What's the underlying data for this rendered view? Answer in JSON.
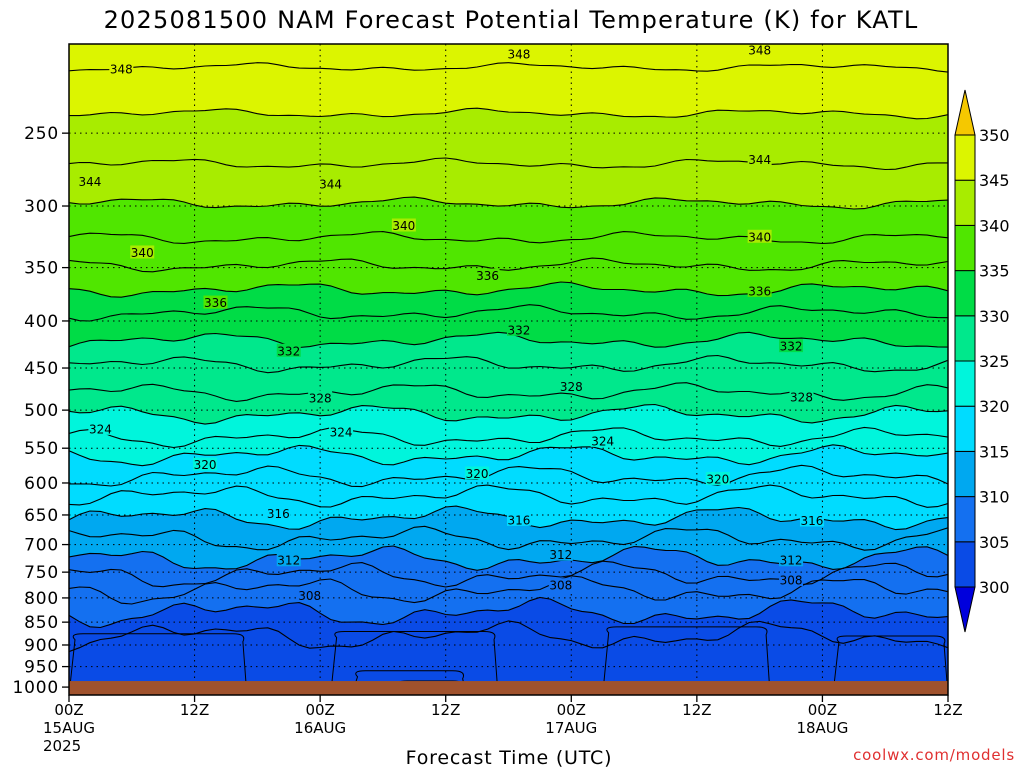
{
  "title": "2025081500 NAM Forecast Potential Temperature (K) for KATL",
  "credit": "coolwx.com/models",
  "xlabel": "Forecast Time (UTC)",
  "chart_data": {
    "type": "contour-timeheight",
    "title": "2025081500 NAM Forecast Potential Temperature (K) for KATL",
    "xlabel": "Forecast Time (UTC)",
    "ylabel": "",
    "x_ticks": [
      {
        "hour": 0,
        "lines": [
          "00Z",
          "15AUG",
          "2025"
        ]
      },
      {
        "hour": 12,
        "lines": [
          "12Z"
        ]
      },
      {
        "hour": 24,
        "lines": [
          "00Z",
          "16AUG"
        ]
      },
      {
        "hour": 36,
        "lines": [
          "12Z"
        ]
      },
      {
        "hour": 48,
        "lines": [
          "00Z",
          "17AUG"
        ]
      },
      {
        "hour": 60,
        "lines": [
          "12Z"
        ]
      },
      {
        "hour": 72,
        "lines": [
          "00Z",
          "18AUG"
        ]
      },
      {
        "hour": 84,
        "lines": [
          "12Z"
        ]
      }
    ],
    "xlim": [
      0,
      84
    ],
    "y_ticks": [
      250,
      300,
      350,
      400,
      450,
      500,
      550,
      600,
      650,
      700,
      750,
      800,
      850,
      900,
      950,
      1000
    ],
    "ylim_hpa": [
      200,
      1020
    ],
    "y_scale": "log",
    "ground_color": "#a0522d",
    "colorbar": {
      "labels": [
        300,
        305,
        310,
        315,
        320,
        325,
        330,
        335,
        340,
        345,
        350
      ],
      "colors": [
        "#0000dc",
        "#0a4be6",
        "#1470f0",
        "#00a8f0",
        "#00dcff",
        "#00f5dc",
        "#00e88c",
        "#00dc46",
        "#50e600",
        "#a8ec00",
        "#dcf500",
        "#fff000",
        "#f5c800"
      ],
      "extend": "both"
    },
    "contour_interval": 2,
    "contour_labels": [
      {
        "value": 348,
        "hour": 5,
        "hpa": 213
      },
      {
        "value": 348,
        "hour": 43,
        "hpa": 205
      },
      {
        "value": 348,
        "hour": 66,
        "hpa": 203
      },
      {
        "value": 344,
        "hour": 2,
        "hpa": 282
      },
      {
        "value": 344,
        "hour": 25,
        "hpa": 284
      },
      {
        "value": 344,
        "hour": 66,
        "hpa": 267
      },
      {
        "value": 340,
        "hour": 7,
        "hpa": 337
      },
      {
        "value": 340,
        "hour": 32,
        "hpa": 315
      },
      {
        "value": 340,
        "hour": 66,
        "hpa": 324
      },
      {
        "value": 336,
        "hour": 14,
        "hpa": 382
      },
      {
        "value": 336,
        "hour": 40,
        "hpa": 357
      },
      {
        "value": 336,
        "hour": 66,
        "hpa": 371
      },
      {
        "value": 332,
        "hour": 21,
        "hpa": 431
      },
      {
        "value": 332,
        "hour": 43,
        "hpa": 409
      },
      {
        "value": 332,
        "hour": 69,
        "hpa": 426
      },
      {
        "value": 328,
        "hour": 24,
        "hpa": 485
      },
      {
        "value": 328,
        "hour": 48,
        "hpa": 471
      },
      {
        "value": 328,
        "hour": 70,
        "hpa": 484
      },
      {
        "value": 324,
        "hour": 3,
        "hpa": 524
      },
      {
        "value": 324,
        "hour": 26,
        "hpa": 528
      },
      {
        "value": 324,
        "hour": 51,
        "hpa": 540
      },
      {
        "value": 320,
        "hour": 13,
        "hpa": 573
      },
      {
        "value": 320,
        "hour": 39,
        "hpa": 586
      },
      {
        "value": 320,
        "hour": 62,
        "hpa": 594
      },
      {
        "value": 316,
        "hour": 20,
        "hpa": 648
      },
      {
        "value": 316,
        "hour": 43,
        "hpa": 658
      },
      {
        "value": 316,
        "hour": 71,
        "hpa": 659
      },
      {
        "value": 312,
        "hour": 21,
        "hpa": 728
      },
      {
        "value": 312,
        "hour": 47,
        "hpa": 718
      },
      {
        "value": 312,
        "hour": 69,
        "hpa": 728
      },
      {
        "value": 308,
        "hour": 23,
        "hpa": 795
      },
      {
        "value": 308,
        "hour": 47,
        "hpa": 775
      },
      {
        "value": 308,
        "hour": 69,
        "hpa": 765
      }
    ],
    "level_heights": [
      {
        "theta": 350,
        "hpa": 195
      },
      {
        "theta": 348,
        "hpa": 212
      },
      {
        "theta": 346,
        "hpa": 238
      },
      {
        "theta": 344,
        "hpa": 270
      },
      {
        "theta": 342,
        "hpa": 298
      },
      {
        "theta": 340,
        "hpa": 325
      },
      {
        "theta": 338,
        "hpa": 348
      },
      {
        "theta": 336,
        "hpa": 370
      },
      {
        "theta": 334,
        "hpa": 392
      },
      {
        "theta": 332,
        "hpa": 420
      },
      {
        "theta": 330,
        "hpa": 446
      },
      {
        "theta": 328,
        "hpa": 478
      },
      {
        "theta": 326,
        "hpa": 505
      },
      {
        "theta": 324,
        "hpa": 535
      },
      {
        "theta": 322,
        "hpa": 560
      },
      {
        "theta": 320,
        "hpa": 590
      },
      {
        "theta": 318,
        "hpa": 620
      },
      {
        "theta": 316,
        "hpa": 655
      },
      {
        "theta": 314,
        "hpa": 690
      },
      {
        "theta": 312,
        "hpa": 725
      },
      {
        "theta": 310,
        "hpa": 755
      },
      {
        "theta": 308,
        "hpa": 785
      },
      {
        "theta": 306,
        "hpa": 830
      },
      {
        "theta": 304,
        "hpa": 880
      }
    ],
    "low_level_cells": [
      {
        "theta": 304,
        "hour_start": 0,
        "hour_end": 17,
        "hpa_top": 875
      },
      {
        "theta": 304,
        "hour_start": 25,
        "hour_end": 41,
        "hpa_top": 870
      },
      {
        "theta": 304,
        "hour_start": 51,
        "hour_end": 67,
        "hpa_top": 860
      },
      {
        "theta": 304,
        "hour_start": 73,
        "hour_end": 84,
        "hpa_top": 880
      },
      {
        "theta": 302,
        "hour_start": 27,
        "hour_end": 38,
        "hpa_top": 960
      },
      {
        "theta": 300,
        "hour_start": 31,
        "hour_end": 38,
        "hpa_top": 985
      }
    ]
  }
}
